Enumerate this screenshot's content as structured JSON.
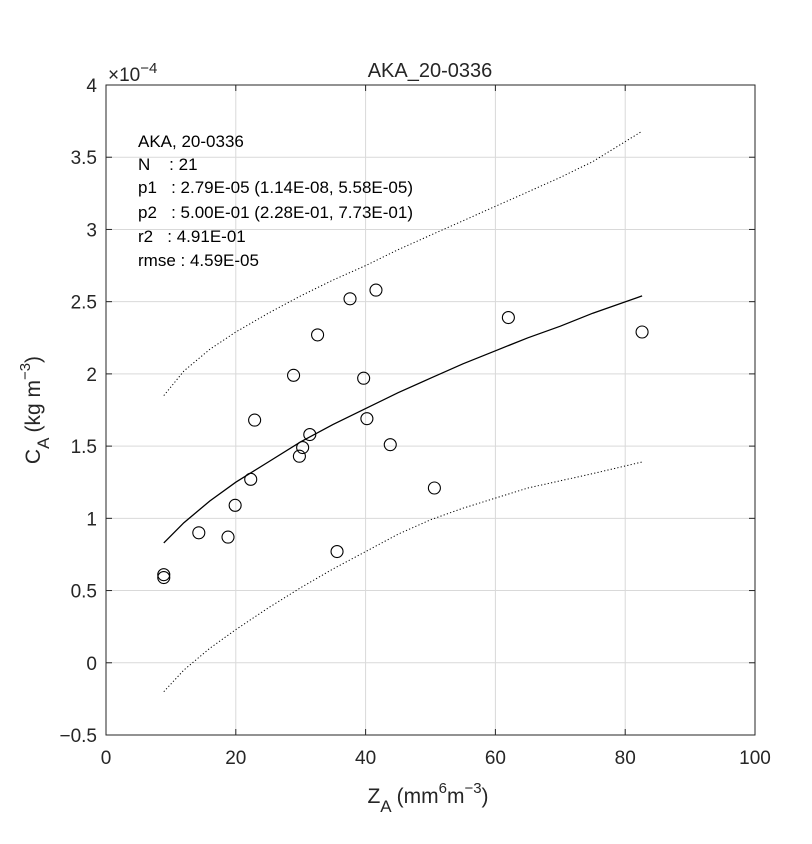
{
  "chart_data": {
    "type": "scatter",
    "title": "AKA_20-0336",
    "xlabel": {
      "base": "Z",
      "sub": "A",
      "unit_pre": "(mm",
      "unit_sup": "6",
      "unit_mid": "m",
      "unit_sup2": "−3",
      "unit_post": ")"
    },
    "ylabel": {
      "base": "C",
      "sub": "A",
      "unit_pre": "(kg m",
      "unit_sup": "−3",
      "unit_post": ")"
    },
    "xlim": [
      0,
      100
    ],
    "ylim": [
      -0.5,
      4
    ],
    "x_ticks": [
      0,
      20,
      40,
      60,
      80,
      100
    ],
    "x_tick_labels": [
      "0",
      "20",
      "40",
      "60",
      "80",
      "100"
    ],
    "y_ticks": [
      -0.5,
      0,
      0.5,
      1,
      1.5,
      2,
      2.5,
      3,
      3.5,
      4
    ],
    "y_tick_labels": [
      "−0.5",
      "0",
      "0.5",
      "1",
      "1.5",
      "2",
      "2.5",
      "3",
      "3.5",
      "4"
    ],
    "y_exponent": {
      "prefix": "×10",
      "power": "−4"
    },
    "y_scale_note": "values ×10^-4",
    "grid": true,
    "annotations": [
      "AKA, 20-0336",
      "N    : 21",
      "p1   : 2.79E-05 (1.14E-08, 5.58E-05)",
      "p2   : 5.00E-01 (2.28E-01, 7.73E-01)",
      "r2   : 4.91E-01",
      "rmse : 4.59E-05"
    ],
    "series": [
      {
        "kind": "points",
        "marker": "open-circle",
        "x": [
          8.9,
          8.9,
          14.3,
          18.8,
          19.9,
          22.3,
          22.9,
          28.9,
          29.8,
          30.3,
          31.4,
          32.6,
          35.6,
          37.6,
          39.7,
          40.2,
          41.6,
          43.8,
          50.6,
          62.0,
          82.6
        ],
        "y": [
          0.61,
          0.59,
          0.9,
          0.87,
          1.09,
          1.27,
          1.68,
          1.99,
          1.43,
          1.49,
          1.58,
          2.27,
          0.77,
          2.52,
          1.97,
          1.69,
          2.58,
          1.51,
          1.21,
          2.39,
          2.29
        ]
      },
      {
        "kind": "fit-line",
        "style": "solid",
        "x": [
          8.9,
          12,
          16,
          20,
          25,
          30,
          35,
          40,
          45,
          50,
          55,
          60,
          65,
          70,
          75,
          82.6
        ],
        "y": [
          0.83,
          0.97,
          1.12,
          1.25,
          1.39,
          1.53,
          1.65,
          1.76,
          1.87,
          1.97,
          2.07,
          2.16,
          2.25,
          2.33,
          2.42,
          2.54
        ]
      },
      {
        "kind": "confidence-upper",
        "style": "dotted",
        "x": [
          8.9,
          12,
          16,
          20,
          25,
          30,
          35,
          40,
          45,
          50,
          55,
          60,
          65,
          70,
          75,
          82.6
        ],
        "y": [
          1.85,
          2.02,
          2.17,
          2.29,
          2.42,
          2.54,
          2.65,
          2.75,
          2.86,
          2.96,
          3.06,
          3.16,
          3.26,
          3.36,
          3.47,
          3.68
        ]
      },
      {
        "kind": "confidence-lower",
        "style": "dotted",
        "x": [
          8.9,
          12,
          16,
          20,
          25,
          30,
          35,
          40,
          45,
          50,
          55,
          60,
          65,
          70,
          75,
          82.6
        ],
        "y": [
          -0.2,
          -0.05,
          0.1,
          0.23,
          0.38,
          0.52,
          0.65,
          0.77,
          0.89,
          0.99,
          1.07,
          1.14,
          1.21,
          1.26,
          1.31,
          1.39
        ]
      }
    ]
  }
}
